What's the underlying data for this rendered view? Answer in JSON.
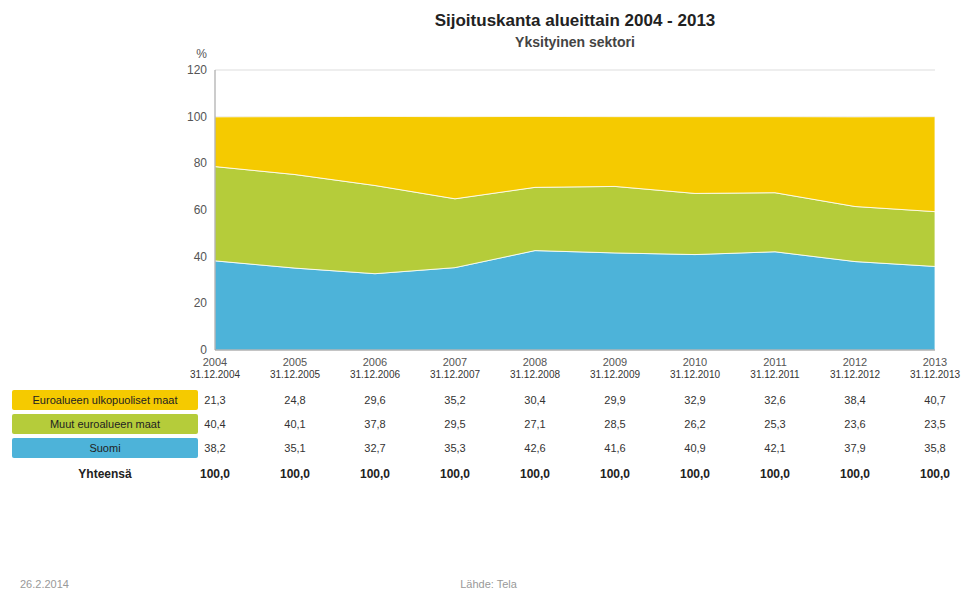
{
  "chart_data": {
    "type": "area",
    "stacked": true,
    "title": "Sijoituskanta alueittain 2004 - 2013",
    "subtitle": "Yksityinen sektori",
    "y_label": "%",
    "categories": [
      "2004",
      "2005",
      "2006",
      "2007",
      "2008",
      "2009",
      "2010",
      "2011",
      "2012",
      "2013"
    ],
    "series": [
      {
        "name": "Suomi",
        "color": "#4db3d9",
        "values": [
          38.2,
          35.1,
          32.7,
          35.3,
          42.6,
          41.6,
          40.9,
          42.1,
          37.9,
          35.8
        ],
        "value_labels": [
          "38,2",
          "35,1",
          "32,7",
          "35,3",
          "42,6",
          "41,6",
          "40,9",
          "42,1",
          "37,9",
          "35,8"
        ]
      },
      {
        "name": "Muut euroalueen maat",
        "color": "#b5cc3a",
        "values": [
          40.4,
          40.1,
          37.8,
          29.5,
          27.1,
          28.5,
          26.2,
          25.3,
          23.6,
          23.5
        ],
        "value_labels": [
          "40,4",
          "40,1",
          "37,8",
          "29,5",
          "27,1",
          "28,5",
          "26,2",
          "25,3",
          "23,6",
          "23,5"
        ]
      },
      {
        "name": "Euroalueen ulkopuoliset maat",
        "color": "#f5ca00",
        "values": [
          21.3,
          24.8,
          29.6,
          35.2,
          30.4,
          29.9,
          32.9,
          32.6,
          38.4,
          40.7
        ],
        "value_labels": [
          "21,3",
          "24,8",
          "29,6",
          "35,2",
          "30,4",
          "29,9",
          "32,9",
          "32,6",
          "38,4",
          "40,7"
        ]
      }
    ],
    "ylim": [
      0,
      120
    ],
    "yticks": [
      0,
      20,
      40,
      60,
      80,
      100,
      120
    ],
    "grid": true,
    "table_header": [
      "31.12.2004",
      "31.12.2005",
      "31.12.2006",
      "31.12.2007",
      "31.12.2008",
      "31.12.2009",
      "31.12.2010",
      "31.12.2011",
      "31.12.2012",
      "31.12.2013"
    ],
    "total_label": "Yhteensä",
    "total_labels": [
      "100,0",
      "100,0",
      "100,0",
      "100,0",
      "100,0",
      "100,0",
      "100,0",
      "100,0",
      "100,0",
      "100,0"
    ],
    "date_label": "26.2.2014",
    "source": "Lähde: Tela"
  }
}
